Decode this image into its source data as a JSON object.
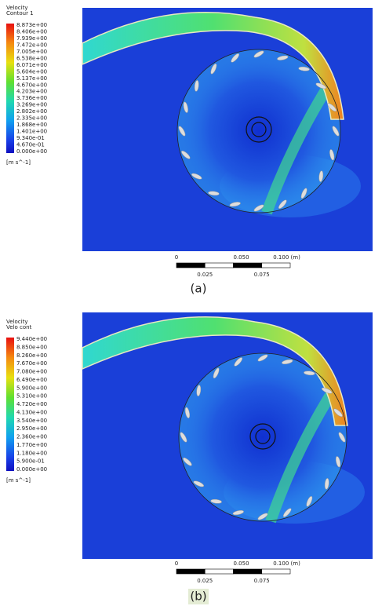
{
  "panels": [
    {
      "legend": {
        "title": [
          "Velocity",
          "Contour 1"
        ],
        "values": [
          "8.873e+00",
          "8.406e+00",
          "7.939e+00",
          "7.472e+00",
          "7.005e+00",
          "6.538e+00",
          "6.071e+00",
          "5.604e+00",
          "5.137e+00",
          "4.670e+00",
          "4.203e+00",
          "3.736e+00",
          "3.269e+00",
          "2.802e+00",
          "2.335e+00",
          "1.868e+00",
          "1.401e+00",
          "9.340e-01",
          "4.670e-01",
          "0.000e+00"
        ],
        "unit": "[m s^-1]"
      },
      "scale": {
        "top_labels": [
          "0",
          "0.050",
          "0.100 (m)"
        ],
        "bottom_labels": [
          "0.025",
          "0.075"
        ]
      },
      "caption": "(a)"
    },
    {
      "legend": {
        "title": [
          "Velocity",
          "Velo cont"
        ],
        "values": [
          "9.440e+00",
          "8.850e+00",
          "8.260e+00",
          "7.670e+00",
          "7.080e+00",
          "6.490e+00",
          "5.900e+00",
          "5.310e+00",
          "4.720e+00",
          "4.130e+00",
          "3.540e+00",
          "2.950e+00",
          "2.360e+00",
          "1.770e+00",
          "1.180e+00",
          "5.900e-01",
          "0.000e+00"
        ],
        "unit": "[m s^-1]"
      },
      "scale": {
        "top_labels": [
          "0",
          "0.050",
          "0.100 (m)"
        ],
        "bottom_labels": [
          "0.025",
          "0.075"
        ]
      },
      "caption": "(b)"
    }
  ]
}
